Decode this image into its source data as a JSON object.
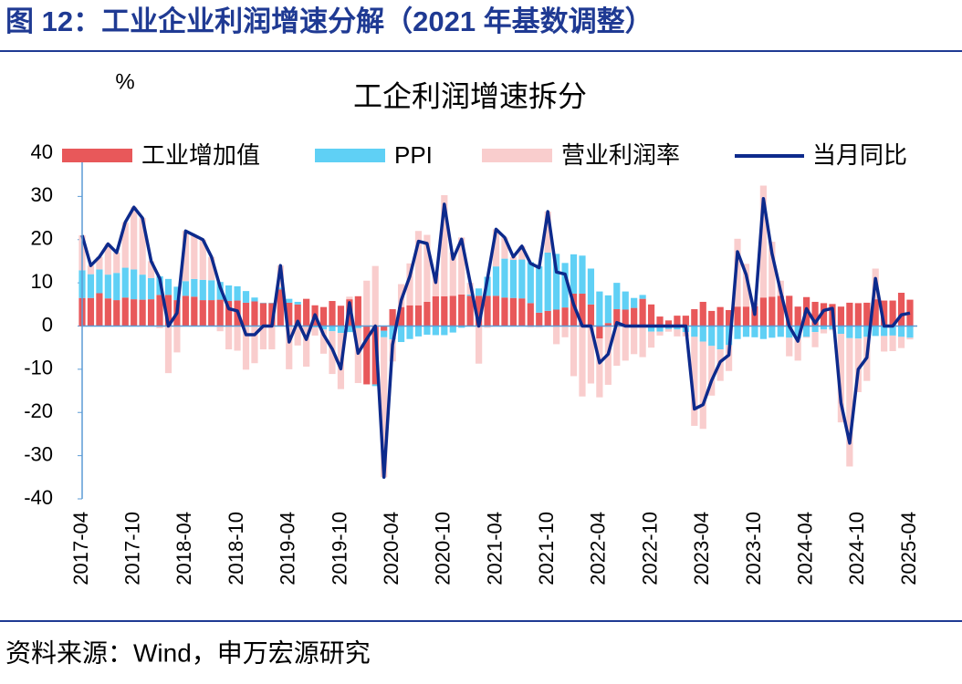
{
  "header": {
    "title": "图 12：工业企业利润增速分解（2021 年基数调整）"
  },
  "chart_data": {
    "type": "stacked-bar-line",
    "title": "工企利润增速拆分",
    "y_label": "%",
    "categories": [
      "2017-04",
      null,
      null,
      null,
      null,
      null,
      "2017-10",
      null,
      null,
      null,
      null,
      null,
      "2018-04",
      null,
      null,
      null,
      null,
      null,
      "2018-10",
      null,
      null,
      null,
      null,
      null,
      "2019-04",
      null,
      null,
      null,
      null,
      null,
      "2019-10",
      null,
      null,
      null,
      null,
      null,
      "2020-04",
      null,
      null,
      null,
      null,
      null,
      "2020-10",
      null,
      null,
      null,
      null,
      null,
      "2021-04",
      null,
      null,
      null,
      null,
      null,
      "2021-10",
      null,
      null,
      null,
      null,
      null,
      "2022-04",
      null,
      null,
      null,
      null,
      null,
      "2022-10",
      null,
      null,
      null,
      null,
      null,
      "2023-04",
      null,
      null,
      null,
      null,
      null,
      "2023-10",
      null,
      null,
      null,
      null,
      null,
      "2024-04",
      null,
      null,
      null,
      null,
      null,
      "2024-10",
      null,
      null,
      null,
      null,
      null,
      "2025-04"
    ],
    "ylim": [
      -40,
      40
    ],
    "yticks": [
      -40,
      -30,
      -20,
      -10,
      0,
      10,
      20,
      30,
      40
    ],
    "series": [
      {
        "name": "工业增加值",
        "kind": "bar",
        "color": "#e8585a",
        "values": [
          6.5,
          6.5,
          7.6,
          6.4,
          6,
          6.6,
          6.2,
          6.1,
          6.2,
          7.2,
          7.2,
          6,
          7,
          6.8,
          6,
          6,
          6.1,
          5.8,
          5.9,
          5.4,
          5.7,
          5.3,
          5.3,
          8.5,
          5.4,
          5,
          6.3,
          4.8,
          4.4,
          5.8,
          4.7,
          6.2,
          6.9,
          -13.5,
          -13.5,
          -1.1,
          3.9,
          4.4,
          4.8,
          4.8,
          5.6,
          6.9,
          6.9,
          7,
          7.3,
          7,
          7,
          7,
          7,
          6.6,
          6.5,
          6.4,
          5.3,
          3.1,
          3.5,
          3.8,
          4.3,
          7.5,
          7.5,
          5,
          -2.9,
          0.7,
          3.9,
          3.8,
          4.2,
          6.3,
          5,
          2.2,
          1.3,
          2.4,
          2.4,
          3.9,
          5.6,
          3.5,
          4.4,
          3.7,
          4.5,
          4.5,
          4.6,
          6.6,
          6.8,
          7,
          7,
          4.5,
          6.7,
          5.6,
          5.3,
          5.1,
          4.5,
          5.4,
          5.3,
          5.4,
          6.2,
          5.9,
          5.9,
          7.7,
          6.1
        ]
      },
      {
        "name": "PPI",
        "kind": "bar",
        "color": "#5fd0f5",
        "values": [
          6.4,
          5.5,
          5.5,
          5.5,
          6.3,
          6.9,
          6.9,
          5.8,
          4.9,
          4.3,
          3.7,
          3.1,
          3.4,
          4.1,
          4.7,
          4.6,
          4.1,
          3.6,
          3.3,
          2.7,
          0.9,
          0.1,
          0.1,
          0.4,
          0.9,
          0.6,
          0,
          -0.3,
          -0.8,
          -1.2,
          -1.6,
          -1.4,
          -0.5,
          0.1,
          -0.4,
          -1.5,
          -3.1,
          -3.7,
          -3,
          -2.4,
          -2,
          -2.1,
          -2.1,
          -1.5,
          -0.4,
          0.3,
          1.7,
          4.4,
          6.8,
          9,
          8.8,
          9,
          9.5,
          10.7,
          13.5,
          12.9,
          10.3,
          9.1,
          8.8,
          8.3,
          8,
          6.4,
          6.1,
          4.2,
          2.3,
          0.9,
          -1.3,
          -1.3,
          -0.7,
          -0.8,
          -1.4,
          -2.5,
          -3.6,
          -4.6,
          -5.4,
          -4.4,
          -3,
          -2.5,
          -2.6,
          -3,
          -2.7,
          -2.5,
          -2.7,
          -2.8,
          -2.5,
          -1.4,
          -0.8,
          -0.8,
          -1.8,
          -2.8,
          -2.9,
          -2.5,
          -2.3,
          -2.3,
          -2.2,
          -2.5,
          -2.7
        ]
      },
      {
        "name": "营业利润率",
        "kind": "bar",
        "color": "#f9cdcd",
        "values": [
          8.1,
          2,
          2.9,
          7.1,
          4.7,
          10.5,
          14.4,
          13.1,
          3.9,
          -0.5,
          -10.9,
          -6.1,
          11.6,
          10.1,
          9.3,
          5.4,
          -1.2,
          -5.4,
          -5.7,
          -10.1,
          -8.6,
          -5.4,
          -5.4,
          5.1,
          -10,
          -4.5,
          -9.4,
          -1.9,
          -5.6,
          -9.9,
          -13,
          0.6,
          -12.7,
          10.4,
          13.9,
          -32.4,
          -5.1,
          5.3,
          9.7,
          17.2,
          15.5,
          5.3,
          23.4,
          10,
          13.2,
          2.7,
          -8.7,
          -0.4,
          8.6,
          4.9,
          0.7,
          3.1,
          -0.3,
          -0.3,
          9.5,
          -4.2,
          -2.6,
          -11.6,
          -16.3,
          -13.3,
          -13.6,
          -13.6,
          -9.2,
          -8,
          -6.5,
          -7.2,
          -3.7,
          -0.9,
          -0.6,
          -1.6,
          -1,
          -20.6,
          -20.2,
          -11.5,
          -7.3,
          -6,
          15.7,
          9.9,
          0.7,
          25.9,
          12.7,
          3.5,
          -4.3,
          -5.2,
          -0.2,
          -3.5,
          -0.9,
          -0.2,
          -20.5,
          -29.7,
          -12.4,
          -10.2,
          7.1,
          -3.6,
          -3.6,
          -2.6,
          -0.4
        ]
      },
      {
        "name": "当月同比",
        "kind": "line",
        "color": "#0d2a8c",
        "values": [
          21,
          14,
          16,
          19,
          17,
          24,
          27.5,
          25,
          15,
          11,
          0,
          3,
          22,
          21,
          20,
          16,
          9,
          4,
          3.5,
          -2,
          -2,
          0,
          0,
          14,
          -3.7,
          1.1,
          -3.1,
          2.6,
          -2,
          -5.3,
          -9.9,
          5.4,
          -6.3,
          -3,
          0,
          -35,
          -4.3,
          6,
          11.5,
          19.6,
          19.1,
          10.1,
          28.2,
          15.5,
          20.1,
          10,
          0,
          11,
          22.4,
          20.5,
          16,
          18.5,
          14.5,
          13.5,
          26.5,
          12.5,
          12,
          5,
          0,
          0,
          -8.5,
          -6.5,
          0.8,
          0,
          0,
          0,
          0,
          0,
          0,
          0,
          0,
          -19.2,
          -18.2,
          -12.6,
          -8.3,
          -6.7,
          17.2,
          11.9,
          2.7,
          29.5,
          16.8,
          8,
          0,
          -3.5,
          4,
          0.7,
          3.6,
          4.1,
          -17.8,
          -27.1,
          -10,
          -7.3,
          11,
          0,
          0,
          2.6,
          3
        ]
      }
    ]
  },
  "footer": {
    "source": "资料来源：Wind，申万宏源研究"
  }
}
